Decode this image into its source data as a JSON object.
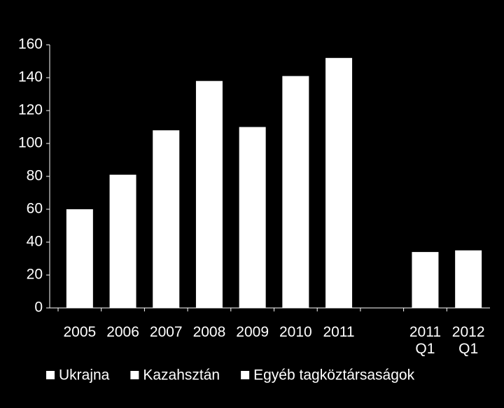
{
  "chart_data": {
    "type": "bar",
    "categories": [
      "2005",
      "2006",
      "2007",
      "2008",
      "2009",
      "2010",
      "2011",
      null,
      "2011\nQ1",
      "2012\nQ1"
    ],
    "values": [
      60,
      81,
      108,
      138,
      110,
      141,
      152,
      null,
      34,
      35
    ],
    "color": "#ffffff",
    "ylim": [
      0,
      160
    ],
    "yticks": [
      0,
      20,
      40,
      60,
      80,
      100,
      120,
      140,
      160
    ],
    "legend": [
      {
        "name": "Ukrajna",
        "color": "#ffffff"
      },
      {
        "name": "Kazahsztán",
        "color": "#ffffff"
      },
      {
        "name": "Egyéb tagköztársaságok",
        "color": "#ffffff"
      }
    ]
  }
}
